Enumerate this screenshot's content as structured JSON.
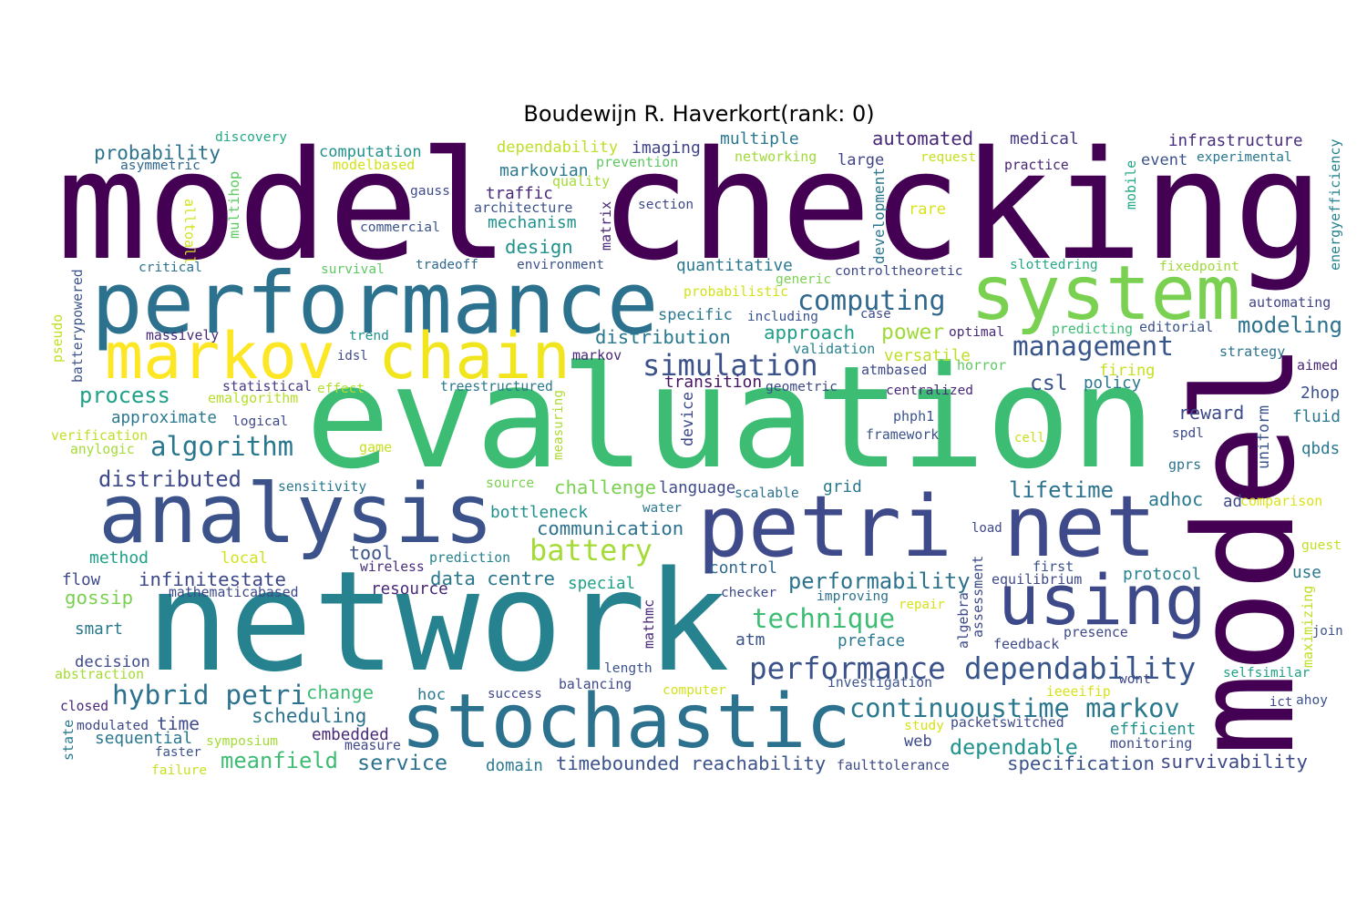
{
  "title": "Boudewijn R. Haverkort(rank: 0)",
  "words": [
    {
      "text": "model checking",
      "color": "#440154"
    },
    {
      "text": "evaluation",
      "color": "#3dbc74"
    },
    {
      "text": "network",
      "color": "#26828e"
    },
    {
      "text": "model",
      "color": "#440154"
    },
    {
      "text": "performance",
      "color": "#2c728e"
    },
    {
      "text": "system",
      "color": "#7ad151"
    },
    {
      "text": "markov",
      "color": "#fde725"
    },
    {
      "text": "chain",
      "color": "#f1e51d"
    },
    {
      "text": "analysis",
      "color": "#3b528b"
    },
    {
      "text": "petri net",
      "color": "#3e4a89"
    },
    {
      "text": "using",
      "color": "#3e4989"
    },
    {
      "text": "stochastic",
      "color": "#2c728e"
    },
    {
      "text": "simulation",
      "color": "#3b528b"
    },
    {
      "text": "computing",
      "color": "#31688e"
    },
    {
      "text": "probability",
      "color": "#2c728e"
    },
    {
      "text": "computation",
      "color": "#21918c"
    },
    {
      "text": "dependability",
      "color": "#bddf26"
    },
    {
      "text": "imaging",
      "color": "#414487"
    },
    {
      "text": "multiple",
      "color": "#2a788e"
    },
    {
      "text": "automated",
      "color": "#482878"
    },
    {
      "text": "medical",
      "color": "#443983"
    },
    {
      "text": "infrastructure",
      "color": "#472d7b"
    },
    {
      "text": "discovery",
      "color": "#22a884"
    },
    {
      "text": "asymmetric",
      "color": "#31688e"
    },
    {
      "text": "modelbased",
      "color": "#d2e21b"
    },
    {
      "text": "markovian",
      "color": "#2a788e"
    },
    {
      "text": "prevention",
      "color": "#5ec962"
    },
    {
      "text": "networking",
      "color": "#a0da39"
    },
    {
      "text": "large",
      "color": "#414487"
    },
    {
      "text": "request",
      "color": "#c8e020"
    },
    {
      "text": "practice",
      "color": "#482475"
    },
    {
      "text": "event",
      "color": "#3b528b"
    },
    {
      "text": "experimental",
      "color": "#2a788e"
    },
    {
      "text": "energyefficiency",
      "color": "#26828e"
    },
    {
      "text": "mobile",
      "color": "#22a884"
    },
    {
      "text": "development",
      "color": "#2a788e"
    },
    {
      "text": "rare",
      "color": "#d8e219"
    },
    {
      "text": "quality",
      "color": "#a5db36"
    },
    {
      "text": "traffic",
      "color": "#482878"
    },
    {
      "text": "gauss",
      "color": "#3e4a89"
    },
    {
      "text": "architecture",
      "color": "#3b528b"
    },
    {
      "text": "section",
      "color": "#3e4989"
    },
    {
      "text": "mechanism",
      "color": "#21918c"
    },
    {
      "text": "commercial",
      "color": "#3b528b"
    },
    {
      "text": "matrix",
      "color": "#482878"
    },
    {
      "text": "design",
      "color": "#21918c"
    },
    {
      "text": "multihop",
      "color": "#5ec962"
    },
    {
      "text": "alltoall",
      "color": "#d2e21b"
    },
    {
      "text": "critical",
      "color": "#2c728e"
    },
    {
      "text": "survival",
      "color": "#5ec962"
    },
    {
      "text": "tradeoff",
      "color": "#31688e"
    },
    {
      "text": "environment",
      "color": "#3b528b"
    },
    {
      "text": "quantitative",
      "color": "#2a788e"
    },
    {
      "text": "generic",
      "color": "#7ad151"
    },
    {
      "text": "controltheoretic",
      "color": "#3e4989"
    },
    {
      "text": "slottedring",
      "color": "#22a884"
    },
    {
      "text": "fixedpoint",
      "color": "#a0da39"
    },
    {
      "text": "batterypowered",
      "color": "#3b528b"
    },
    {
      "text": "pseudo",
      "color": "#c2df23"
    },
    {
      "text": "probabilistic",
      "color": "#d2e21b"
    },
    {
      "text": "specific",
      "color": "#2a788e"
    },
    {
      "text": "including",
      "color": "#3b528b"
    },
    {
      "text": "case",
      "color": "#3e4989"
    },
    {
      "text": "automating",
      "color": "#414487"
    },
    {
      "text": "approach",
      "color": "#1f9e89"
    },
    {
      "text": "power",
      "color": "#a0da39"
    },
    {
      "text": "optimal",
      "color": "#482878"
    },
    {
      "text": "predicting",
      "color": "#3dbc74"
    },
    {
      "text": "editorial",
      "color": "#3b528b"
    },
    {
      "text": "modeling",
      "color": "#2c728e"
    },
    {
      "text": "massively",
      "color": "#482878"
    },
    {
      "text": "trend",
      "color": "#21918c"
    },
    {
      "text": "distribution",
      "color": "#2a788e"
    },
    {
      "text": "management",
      "color": "#39568c"
    },
    {
      "text": "idsl",
      "color": "#3e4a89"
    },
    {
      "text": "markov",
      "color": "#482878"
    },
    {
      "text": "validation",
      "color": "#26828e"
    },
    {
      "text": "versatile",
      "color": "#bddf26"
    },
    {
      "text": "horror",
      "color": "#5ec962"
    },
    {
      "text": "atmbased",
      "color": "#3e4989"
    },
    {
      "text": "strategy",
      "color": "#2c728e"
    },
    {
      "text": "firing",
      "color": "#c8e020"
    },
    {
      "text": "aimed",
      "color": "#482878"
    },
    {
      "text": "process",
      "color": "#1fa187"
    },
    {
      "text": "statistical",
      "color": "#443983"
    },
    {
      "text": "effect",
      "color": "#b5de2b"
    },
    {
      "text": "treestructured",
      "color": "#2a788e"
    },
    {
      "text": "transition",
      "color": "#471365"
    },
    {
      "text": "geometric",
      "color": "#3e4989"
    },
    {
      "text": "csl",
      "color": "#3b528b"
    },
    {
      "text": "policy",
      "color": "#2a788e"
    },
    {
      "text": "centralized",
      "color": "#482878"
    },
    {
      "text": "emalgorithm",
      "color": "#b5de2b"
    },
    {
      "text": "2hop",
      "color": "#3b528b"
    },
    {
      "text": "measuring",
      "color": "#addc30"
    },
    {
      "text": "device",
      "color": "#3e4989"
    },
    {
      "text": "uniform",
      "color": "#3b528b"
    },
    {
      "text": "reward",
      "color": "#3e4989"
    },
    {
      "text": "fluid",
      "color": "#2a788e"
    },
    {
      "text": "approximate",
      "color": "#2a788e"
    },
    {
      "text": "logical",
      "color": "#3e4989"
    },
    {
      "text": "phph1",
      "color": "#3b528b"
    },
    {
      "text": "verification",
      "color": "#bddf26"
    },
    {
      "text": "anylogic",
      "color": "#a5db36"
    },
    {
      "text": "algorithm",
      "color": "#2a788e"
    },
    {
      "text": "framework",
      "color": "#3b528b"
    },
    {
      "text": "cell",
      "color": "#c8e020"
    },
    {
      "text": "spdl",
      "color": "#3e4989"
    },
    {
      "text": "game",
      "color": "#c8e020"
    },
    {
      "text": "qbds",
      "color": "#2a788e"
    },
    {
      "text": "gprs",
      "color": "#2c728e"
    },
    {
      "text": "distributed",
      "color": "#3e4989"
    },
    {
      "text": "sensitivity",
      "color": "#2a788e"
    },
    {
      "text": "source",
      "color": "#7ad151"
    },
    {
      "text": "challenge",
      "color": "#7ad151"
    },
    {
      "text": "language",
      "color": "#3e4989"
    },
    {
      "text": "scalable",
      "color": "#2c728e"
    },
    {
      "text": "grid",
      "color": "#2a788e"
    },
    {
      "text": "lifetime",
      "color": "#2c728e"
    },
    {
      "text": "adhoc",
      "color": "#2a788e"
    },
    {
      "text": "ad",
      "color": "#3e4989"
    },
    {
      "text": "comparison",
      "color": "#dae319"
    },
    {
      "text": "bottleneck",
      "color": "#21918c"
    },
    {
      "text": "water",
      "color": "#2a788e"
    },
    {
      "text": "communication",
      "color": "#2c728e"
    },
    {
      "text": "load",
      "color": "#3e4989"
    },
    {
      "text": "battery",
      "color": "#a5db36"
    },
    {
      "text": "method",
      "color": "#1fa187"
    },
    {
      "text": "local",
      "color": "#d2e21b"
    },
    {
      "text": "tool",
      "color": "#3b528b"
    },
    {
      "text": "wireless",
      "color": "#472d7b"
    },
    {
      "text": "prediction",
      "color": "#26828e"
    },
    {
      "text": "guest",
      "color": "#c2df23"
    },
    {
      "text": "first",
      "color": "#3b528b"
    },
    {
      "text": "control",
      "color": "#31688e"
    },
    {
      "text": "assessment",
      "color": "#3e4989"
    },
    {
      "text": "flow",
      "color": "#3e4989"
    },
    {
      "text": "infinitestate",
      "color": "#3e4989"
    },
    {
      "text": "data centre",
      "color": "#2a788e"
    },
    {
      "text": "special",
      "color": "#1fa187"
    },
    {
      "text": "performability",
      "color": "#2c728e"
    },
    {
      "text": "equilibrium",
      "color": "#3e4989"
    },
    {
      "text": "protocol",
      "color": "#26828e"
    },
    {
      "text": "use",
      "color": "#2a788e"
    },
    {
      "text": "resource",
      "color": "#482878"
    },
    {
      "text": "mathematicabased",
      "color": "#3e4989"
    },
    {
      "text": "gossip",
      "color": "#7ad151"
    },
    {
      "text": "checker",
      "color": "#3e4989"
    },
    {
      "text": "improving",
      "color": "#2c728e"
    },
    {
      "text": "repair",
      "color": "#d8e219"
    },
    {
      "text": "algebra",
      "color": "#3e4989"
    },
    {
      "text": "mathmc",
      "color": "#482878"
    },
    {
      "text": "maximizing",
      "color": "#bddf26"
    },
    {
      "text": "technique",
      "color": "#3dbc74"
    },
    {
      "text": "smart",
      "color": "#2a788e"
    },
    {
      "text": "presence",
      "color": "#3e4989"
    },
    {
      "text": "join",
      "color": "#3b528b"
    },
    {
      "text": "atm",
      "color": "#3b528b"
    },
    {
      "text": "preface",
      "color": "#2a788e"
    },
    {
      "text": "feedback",
      "color": "#3e4989"
    },
    {
      "text": "decision",
      "color": "#3e4989"
    },
    {
      "text": "abstraction",
      "color": "#a5db36"
    },
    {
      "text": "length",
      "color": "#3b528b"
    },
    {
      "text": "performance",
      "color": "#3b528b"
    },
    {
      "text": "dependability",
      "color": "#39568c"
    },
    {
      "text": "selfsimilar",
      "color": "#1fa187"
    },
    {
      "text": "balancing",
      "color": "#3e4989"
    },
    {
      "text": "investigation",
      "color": "#3b528b"
    },
    {
      "text": "wont",
      "color": "#3e4989"
    },
    {
      "text": "hybrid petri",
      "color": "#2c728e"
    },
    {
      "text": "change",
      "color": "#3dbc74"
    },
    {
      "text": "hoc",
      "color": "#2a788e"
    },
    {
      "text": "success",
      "color": "#3e4989"
    },
    {
      "text": "computer",
      "color": "#d2e21b"
    },
    {
      "text": "ieeeifip",
      "color": "#d8e219"
    },
    {
      "text": "continuoustime markov",
      "color": "#2a788e"
    },
    {
      "text": "ict",
      "color": "#3e4989"
    },
    {
      "text": "ahoy",
      "color": "#3b528b"
    },
    {
      "text": "closed",
      "color": "#482878"
    },
    {
      "text": "state",
      "color": "#2a788e"
    },
    {
      "text": "modulated",
      "color": "#3e4989"
    },
    {
      "text": "time",
      "color": "#3e4989"
    },
    {
      "text": "scheduling",
      "color": "#2c728e"
    },
    {
      "text": "study",
      "color": "#d8e219"
    },
    {
      "text": "packetswitched",
      "color": "#3e4989"
    },
    {
      "text": "efficient",
      "color": "#21918c"
    },
    {
      "text": "sequential",
      "color": "#2a788e"
    },
    {
      "text": "symposium",
      "color": "#a5db36"
    },
    {
      "text": "embedded",
      "color": "#482878"
    },
    {
      "text": "measure",
      "color": "#3e4989"
    },
    {
      "text": "web",
      "color": "#3e4989"
    },
    {
      "text": "dependable",
      "color": "#21918c"
    },
    {
      "text": "monitoring",
      "color": "#3e4989"
    },
    {
      "text": "faster",
      "color": "#3b528b"
    },
    {
      "text": "meanfield",
      "color": "#3dbc74"
    },
    {
      "text": "service",
      "color": "#2c728e"
    },
    {
      "text": "domain",
      "color": "#2a788e"
    },
    {
      "text": "timebounded reachability",
      "color": "#3b528b"
    },
    {
      "text": "faulttolerance",
      "color": "#3e4989"
    },
    {
      "text": "specification",
      "color": "#3b528b"
    },
    {
      "text": "survivability",
      "color": "#3e4989"
    },
    {
      "text": "failure",
      "color": "#c8e020"
    }
  ]
}
